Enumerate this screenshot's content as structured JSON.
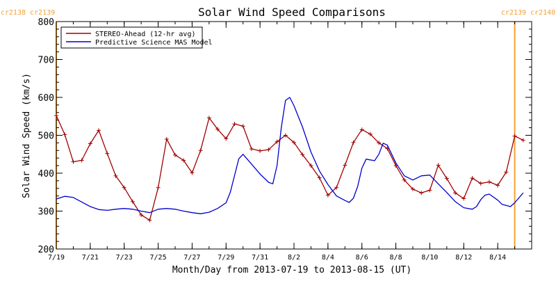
{
  "chart_data": {
    "type": "line",
    "title": "Solar Wind Speed Comparisons",
    "xlabel": "Month/Day from 2013-07-19 to 2013-08-15 (UT)",
    "ylabel": "Solar Wind Speed (km/s)",
    "xlim": [
      "2013-07-19",
      "2013-08-16"
    ],
    "ylim": [
      200,
      800
    ],
    "x_tick_labels": [
      "7/19",
      "7/21",
      "7/23",
      "7/25",
      "7/27",
      "7/29",
      "7/31",
      "8/2",
      "8/4",
      "8/6",
      "8/8",
      "8/10",
      "8/12",
      "8/14"
    ],
    "y_tick_labels": [
      "200",
      "300",
      "400",
      "500",
      "600",
      "700",
      "800"
    ],
    "legend_position": "top-left",
    "grid": false,
    "rotation_markers": [
      {
        "date": "2013-07-19",
        "label_left": "cr2138",
        "label_right": "cr2139",
        "color": "#f4a030"
      },
      {
        "date": "2013-08-15",
        "label_left": "cr2139",
        "label_right": "cr2140",
        "color": "#f4a030"
      }
    ],
    "series": [
      {
        "name": "STEREO-Ahead (12-hr avg)",
        "color": "#a00000",
        "markers": true,
        "points": [
          [
            "2013-07-19T00:00",
            552
          ],
          [
            "2013-07-19T12:00",
            502
          ],
          [
            "2013-07-20T00:00",
            430
          ],
          [
            "2013-07-20T12:00",
            434
          ],
          [
            "2013-07-21T00:00",
            478
          ],
          [
            "2013-07-21T12:00",
            513
          ],
          [
            "2013-07-22T00:00",
            452
          ],
          [
            "2013-07-22T12:00",
            393
          ],
          [
            "2013-07-23T00:00",
            362
          ],
          [
            "2013-07-23T12:00",
            325
          ],
          [
            "2013-07-24T00:00",
            290
          ],
          [
            "2013-07-24T12:00",
            276
          ],
          [
            "2013-07-25T00:00",
            362
          ],
          [
            "2013-07-25T12:00",
            490
          ],
          [
            "2013-07-26T00:00",
            448
          ],
          [
            "2013-07-26T12:00",
            434
          ],
          [
            "2013-07-27T00:00",
            401
          ],
          [
            "2013-07-27T12:00",
            460
          ],
          [
            "2013-07-28T00:00",
            546
          ],
          [
            "2013-07-28T12:00",
            516
          ],
          [
            "2013-07-29T00:00",
            491
          ],
          [
            "2013-07-29T12:00",
            530
          ],
          [
            "2013-07-30T00:00",
            524
          ],
          [
            "2013-07-30T12:00",
            464
          ],
          [
            "2013-07-31T00:00",
            459
          ],
          [
            "2013-07-31T12:00",
            462
          ],
          [
            "2013-08-01T00:00",
            483
          ],
          [
            "2013-08-01T12:00",
            500
          ],
          [
            "2013-08-02T00:00",
            481
          ],
          [
            "2013-08-02T12:00",
            449
          ],
          [
            "2013-08-03T00:00",
            420
          ],
          [
            "2013-08-03T12:00",
            388
          ],
          [
            "2013-08-04T00:00",
            342
          ],
          [
            "2013-08-04T12:00",
            362
          ],
          [
            "2013-08-05T00:00",
            421
          ],
          [
            "2013-08-05T12:00",
            481
          ],
          [
            "2013-08-06T00:00",
            515
          ],
          [
            "2013-08-06T12:00",
            503
          ],
          [
            "2013-08-07T00:00",
            480
          ],
          [
            "2013-08-07T12:00",
            465
          ],
          [
            "2013-08-08T00:00",
            420
          ],
          [
            "2013-08-08T12:00",
            382
          ],
          [
            "2013-08-09T00:00",
            358
          ],
          [
            "2013-08-09T12:00",
            348
          ],
          [
            "2013-08-10T00:00",
            355
          ],
          [
            "2013-08-10T12:00",
            421
          ],
          [
            "2013-08-11T00:00",
            386
          ],
          [
            "2013-08-11T12:00",
            348
          ],
          [
            "2013-08-12T00:00",
            333
          ],
          [
            "2013-08-12T12:00",
            387
          ],
          [
            "2013-08-13T00:00",
            373
          ],
          [
            "2013-08-13T12:00",
            377
          ],
          [
            "2013-08-14T00:00",
            368
          ],
          [
            "2013-08-14T12:00",
            403
          ],
          [
            "2013-08-15T00:00",
            498
          ],
          [
            "2013-08-15T12:00",
            487
          ]
        ]
      },
      {
        "name": "Predictive Science MAS Model",
        "color": "#0000cc",
        "markers": false,
        "points": [
          [
            "2013-07-19T00:00",
            332
          ],
          [
            "2013-07-19T12:00",
            339
          ],
          [
            "2013-07-20T00:00",
            336
          ],
          [
            "2013-07-20T12:00",
            324
          ],
          [
            "2013-07-21T00:00",
            312
          ],
          [
            "2013-07-21T12:00",
            304
          ],
          [
            "2013-07-22T00:00",
            302
          ],
          [
            "2013-07-22T12:00",
            305
          ],
          [
            "2013-07-23T00:00",
            307
          ],
          [
            "2013-07-23T12:00",
            305
          ],
          [
            "2013-07-24T00:00",
            300
          ],
          [
            "2013-07-24T12:00",
            296
          ],
          [
            "2013-07-25T00:00",
            305
          ],
          [
            "2013-07-25T12:00",
            307
          ],
          [
            "2013-07-26T00:00",
            305
          ],
          [
            "2013-07-26T12:00",
            300
          ],
          [
            "2013-07-27T00:00",
            296
          ],
          [
            "2013-07-27T12:00",
            293
          ],
          [
            "2013-07-28T00:00",
            297
          ],
          [
            "2013-07-28T12:00",
            307
          ],
          [
            "2013-07-29T00:00",
            322
          ],
          [
            "2013-07-29T06:00",
            350
          ],
          [
            "2013-07-29T18:00",
            438
          ],
          [
            "2013-07-30T00:00",
            450
          ],
          [
            "2013-07-30T12:00",
            424
          ],
          [
            "2013-07-31T00:00",
            398
          ],
          [
            "2013-07-31T12:00",
            376
          ],
          [
            "2013-07-31T18:00",
            372
          ],
          [
            "2013-08-01T00:00",
            420
          ],
          [
            "2013-08-01T06:00",
            520
          ],
          [
            "2013-08-01T12:00",
            592
          ],
          [
            "2013-08-01T18:00",
            600
          ],
          [
            "2013-08-02T00:00",
            578
          ],
          [
            "2013-08-02T12:00",
            522
          ],
          [
            "2013-08-03T00:00",
            456
          ],
          [
            "2013-08-03T12:00",
            406
          ],
          [
            "2013-08-04T00:00",
            370
          ],
          [
            "2013-08-04T12:00",
            340
          ],
          [
            "2013-08-05T00:00",
            328
          ],
          [
            "2013-08-05T06:00",
            323
          ],
          [
            "2013-08-05T12:00",
            334
          ],
          [
            "2013-08-05T18:00",
            365
          ],
          [
            "2013-08-06T00:00",
            413
          ],
          [
            "2013-08-06T06:00",
            437
          ],
          [
            "2013-08-06T18:00",
            433
          ],
          [
            "2013-08-07T00:00",
            450
          ],
          [
            "2013-08-07T06:00",
            479
          ],
          [
            "2013-08-07T12:00",
            474
          ],
          [
            "2013-08-08T00:00",
            427
          ],
          [
            "2013-08-08T12:00",
            393
          ],
          [
            "2013-08-09T00:00",
            382
          ],
          [
            "2013-08-09T12:00",
            393
          ],
          [
            "2013-08-10T00:00",
            395
          ],
          [
            "2013-08-10T12:00",
            372
          ],
          [
            "2013-08-11T00:00",
            349
          ],
          [
            "2013-08-11T12:00",
            325
          ],
          [
            "2013-08-12T00:00",
            309
          ],
          [
            "2013-08-12T12:00",
            305
          ],
          [
            "2013-08-12T18:00",
            312
          ],
          [
            "2013-08-13T00:00",
            330
          ],
          [
            "2013-08-13T06:00",
            342
          ],
          [
            "2013-08-13T12:00",
            345
          ],
          [
            "2013-08-14T00:00",
            329
          ],
          [
            "2013-08-14T06:00",
            318
          ],
          [
            "2013-08-14T18:00",
            312
          ],
          [
            "2013-08-15T00:00",
            322
          ],
          [
            "2013-08-15T12:00",
            348
          ]
        ]
      }
    ]
  }
}
